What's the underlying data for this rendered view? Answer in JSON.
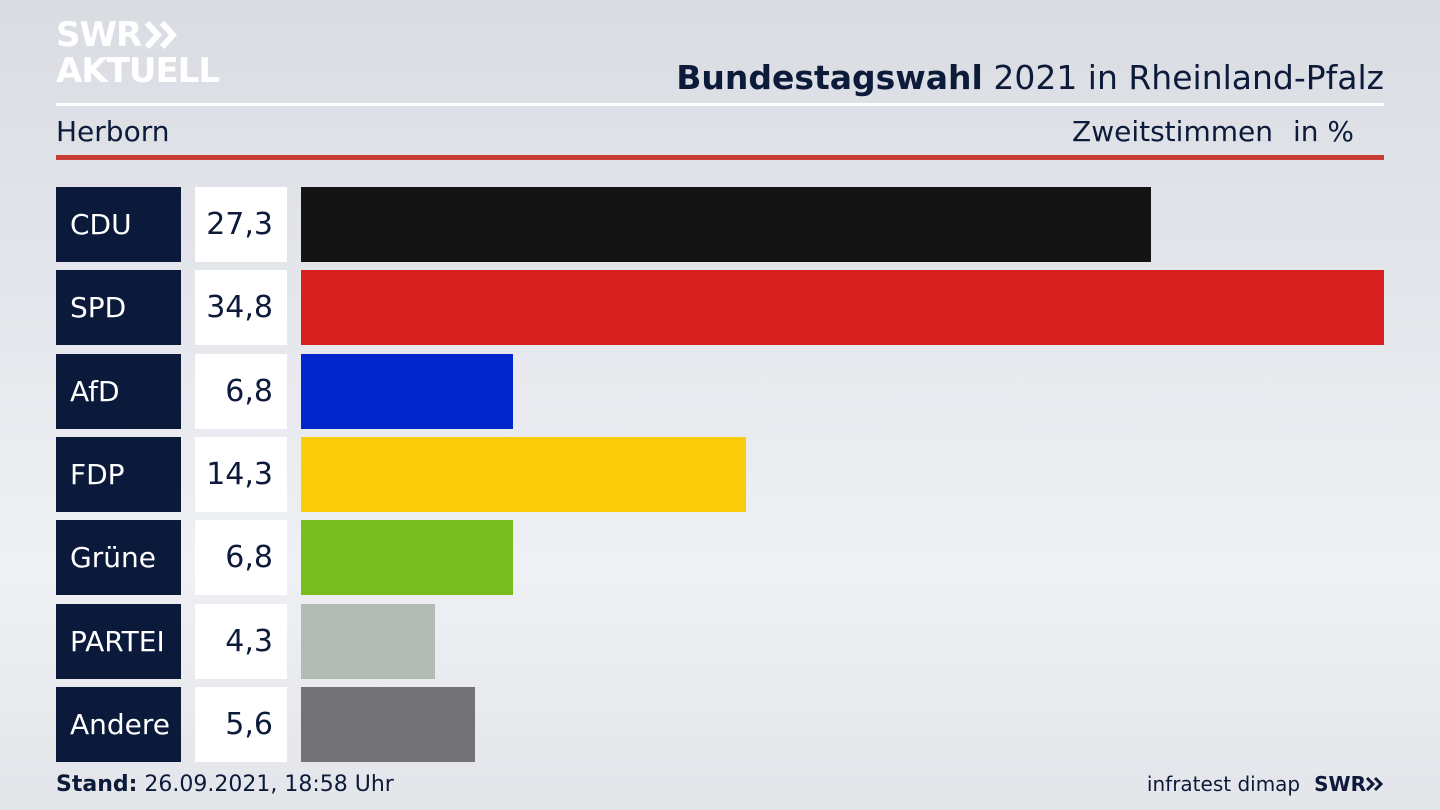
{
  "logo": {
    "line1": "SWR",
    "line2": "AKTUELL"
  },
  "header": {
    "title_bold": "Bundestagswahl",
    "title_rest": " 2021 in Rheinland-Pfalz",
    "region": "Herborn",
    "vote_type": "Zweitstimmen",
    "unit": "in %"
  },
  "chart_data": {
    "type": "bar",
    "orientation": "horizontal",
    "categories": [
      "CDU",
      "SPD",
      "AfD",
      "FDP",
      "Grüne",
      "PARTEI",
      "Andere"
    ],
    "values": [
      27.3,
      34.8,
      6.8,
      14.3,
      6.8,
      4.3,
      5.6
    ],
    "value_labels": [
      "27,3",
      "34,8",
      "6,8",
      "14,3",
      "6,8",
      "4,3",
      "5,6"
    ],
    "colors": [
      "#141414",
      "#d61f1f",
      "#0026cc",
      "#fccc0a",
      "#78be1e",
      "#b2bbb4",
      "#737375"
    ],
    "xmax": 34.8
  },
  "footer": {
    "stand_label": "Stand:",
    "stand_value": " 26.09.2021, 18:58 Uhr",
    "source": "infratest dimap",
    "brand": "SWR"
  }
}
